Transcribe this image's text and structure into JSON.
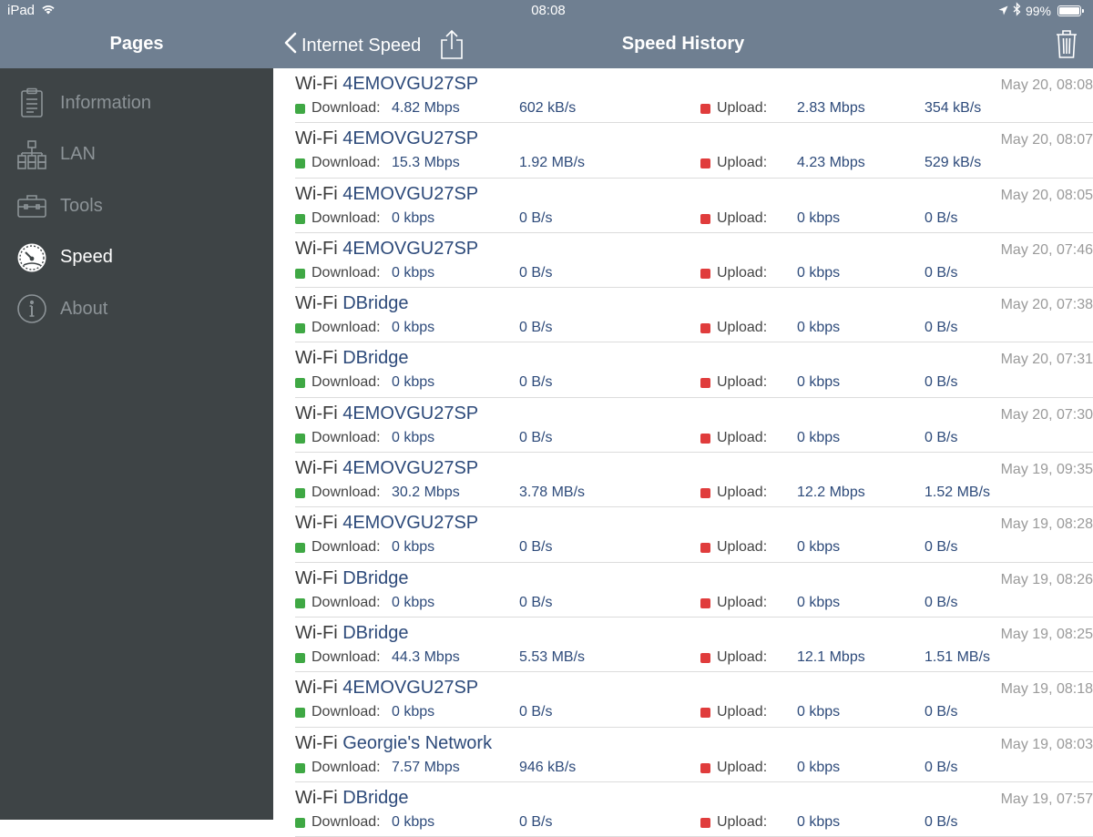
{
  "status": {
    "device": "iPad",
    "time": "08:08",
    "battery": "99%",
    "battery_level": 0.99
  },
  "sidebar": {
    "title": "Pages",
    "items": [
      {
        "label": "Information",
        "icon": "clipboard-icon",
        "active": false
      },
      {
        "label": "LAN",
        "icon": "network-tree-icon",
        "active": false
      },
      {
        "label": "Tools",
        "icon": "toolbox-icon",
        "active": false
      },
      {
        "label": "Speed",
        "icon": "speedometer-icon",
        "active": true
      },
      {
        "label": "About",
        "icon": "info-icon",
        "active": false
      }
    ]
  },
  "header": {
    "back_label": "Internet Speed",
    "title": "Speed History"
  },
  "labels": {
    "download": "Download:",
    "upload": "Upload:"
  },
  "colors": {
    "header_bg": "#6f7f91",
    "sidebar_bg": "#3e4446",
    "download": "#3fa844",
    "upload": "#e03c3c",
    "value_text": "#2d4a7a"
  },
  "history": [
    {
      "prefix": "Wi-Fi",
      "network": "4EMOVGU27SP",
      "date": "May 20, 08:08",
      "dl": "4.82 Mbps",
      "dl_bytes": "602 kB/s",
      "ul": "2.83 Mbps",
      "ul_bytes": "354 kB/s"
    },
    {
      "prefix": "Wi-Fi",
      "network": "4EMOVGU27SP",
      "date": "May 20, 08:07",
      "dl": "15.3 Mbps",
      "dl_bytes": "1.92 MB/s",
      "ul": "4.23 Mbps",
      "ul_bytes": "529 kB/s"
    },
    {
      "prefix": "Wi-Fi",
      "network": "4EMOVGU27SP",
      "date": "May 20, 08:05",
      "dl": "0 kbps",
      "dl_bytes": "0 B/s",
      "ul": "0 kbps",
      "ul_bytes": "0 B/s"
    },
    {
      "prefix": "Wi-Fi",
      "network": "4EMOVGU27SP",
      "date": "May 20, 07:46",
      "dl": "0 kbps",
      "dl_bytes": "0 B/s",
      "ul": "0 kbps",
      "ul_bytes": "0 B/s"
    },
    {
      "prefix": "Wi-Fi",
      "network": "DBridge",
      "date": "May 20, 07:38",
      "dl": "0 kbps",
      "dl_bytes": "0 B/s",
      "ul": "0 kbps",
      "ul_bytes": "0 B/s"
    },
    {
      "prefix": "Wi-Fi",
      "network": "DBridge",
      "date": "May 20, 07:31",
      "dl": "0 kbps",
      "dl_bytes": "0 B/s",
      "ul": "0 kbps",
      "ul_bytes": "0 B/s"
    },
    {
      "prefix": "Wi-Fi",
      "network": "4EMOVGU27SP",
      "date": "May 20, 07:30",
      "dl": "0 kbps",
      "dl_bytes": "0 B/s",
      "ul": "0 kbps",
      "ul_bytes": "0 B/s"
    },
    {
      "prefix": "Wi-Fi",
      "network": "4EMOVGU27SP",
      "date": "May 19, 09:35",
      "dl": "30.2 Mbps",
      "dl_bytes": "3.78 MB/s",
      "ul": "12.2 Mbps",
      "ul_bytes": "1.52 MB/s"
    },
    {
      "prefix": "Wi-Fi",
      "network": "4EMOVGU27SP",
      "date": "May 19, 08:28",
      "dl": "0 kbps",
      "dl_bytes": "0 B/s",
      "ul": "0 kbps",
      "ul_bytes": "0 B/s"
    },
    {
      "prefix": "Wi-Fi",
      "network": "DBridge",
      "date": "May 19, 08:26",
      "dl": "0 kbps",
      "dl_bytes": "0 B/s",
      "ul": "0 kbps",
      "ul_bytes": "0 B/s"
    },
    {
      "prefix": "Wi-Fi",
      "network": "DBridge",
      "date": "May 19, 08:25",
      "dl": "44.3 Mbps",
      "dl_bytes": "5.53 MB/s",
      "ul": "12.1 Mbps",
      "ul_bytes": "1.51 MB/s"
    },
    {
      "prefix": "Wi-Fi",
      "network": "4EMOVGU27SP",
      "date": "May 19, 08:18",
      "dl": "0 kbps",
      "dl_bytes": "0 B/s",
      "ul": "0 kbps",
      "ul_bytes": "0 B/s"
    },
    {
      "prefix": "Wi-Fi",
      "network": "Georgie's Network",
      "date": "May 19, 08:03",
      "dl": "7.57 Mbps",
      "dl_bytes": "946 kB/s",
      "ul": "0 kbps",
      "ul_bytes": "0 B/s"
    },
    {
      "prefix": "Wi-Fi",
      "network": "DBridge",
      "date": "May 19, 07:57",
      "dl": "0 kbps",
      "dl_bytes": "0 B/s",
      "ul": "0 kbps",
      "ul_bytes": "0 B/s"
    }
  ]
}
